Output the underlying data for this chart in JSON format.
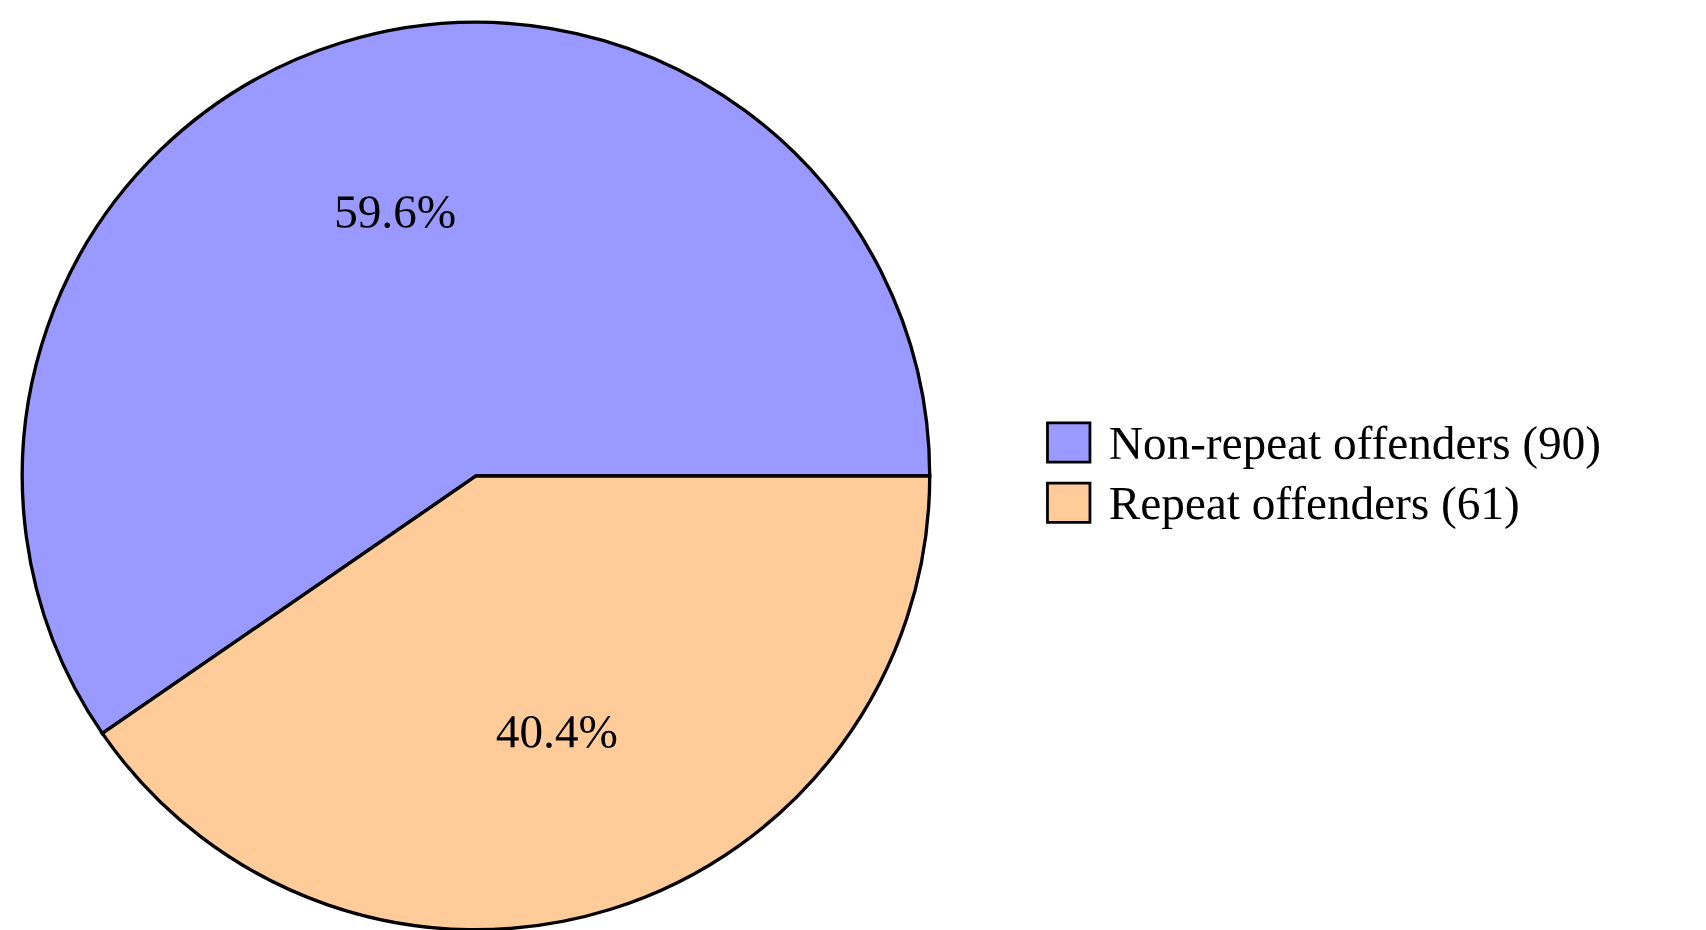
{
  "chart_data": {
    "type": "pie",
    "categories": [
      "Non-repeat offenders (90)",
      "Repeat offenders (61)"
    ],
    "values": [
      59.6,
      40.4
    ],
    "value_labels": [
      "59.6%",
      "40.4%"
    ],
    "colors": [
      "#9999ff",
      "#ffcc99"
    ],
    "legend": "right"
  }
}
